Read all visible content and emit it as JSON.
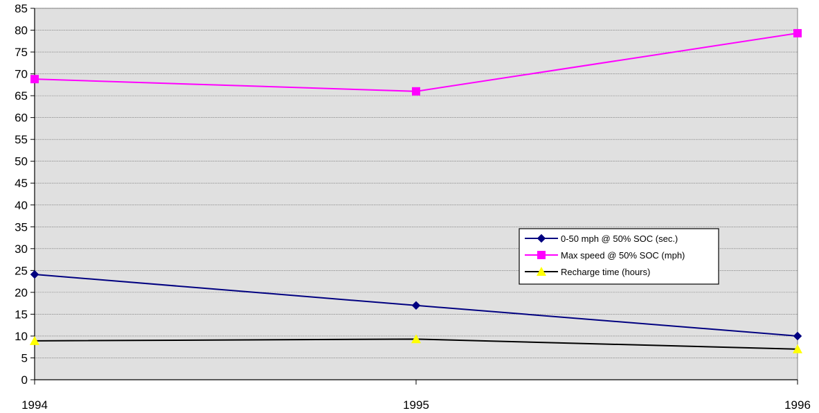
{
  "chart_data": {
    "type": "line",
    "title": "",
    "xlabel": "",
    "ylabel": "",
    "categories": [
      "1994",
      "1995",
      "1996"
    ],
    "ylim": [
      0,
      85
    ],
    "y_ticks": [
      0,
      5,
      10,
      15,
      20,
      25,
      30,
      35,
      40,
      45,
      50,
      55,
      60,
      65,
      70,
      75,
      80,
      85
    ],
    "grid": true,
    "plot_background": "#e0e0e0",
    "legend_position": "center-right",
    "series": [
      {
        "name": "0-50 mph @ 50% SOC (sec.)",
        "values": [
          24.1,
          17.0,
          10.0
        ],
        "line_color": "#000080",
        "marker": "diamond",
        "marker_color": "#000080"
      },
      {
        "name": "Max speed @ 50% SOC (mph)",
        "values": [
          68.8,
          66.0,
          79.3
        ],
        "line_color": "#ff00ff",
        "marker": "square",
        "marker_color": "#ff00ff"
      },
      {
        "name": "Recharge time (hours)",
        "values": [
          8.9,
          9.3,
          7.0
        ],
        "line_color": "#000000",
        "marker": "triangle",
        "marker_color": "#ffff00"
      }
    ]
  }
}
